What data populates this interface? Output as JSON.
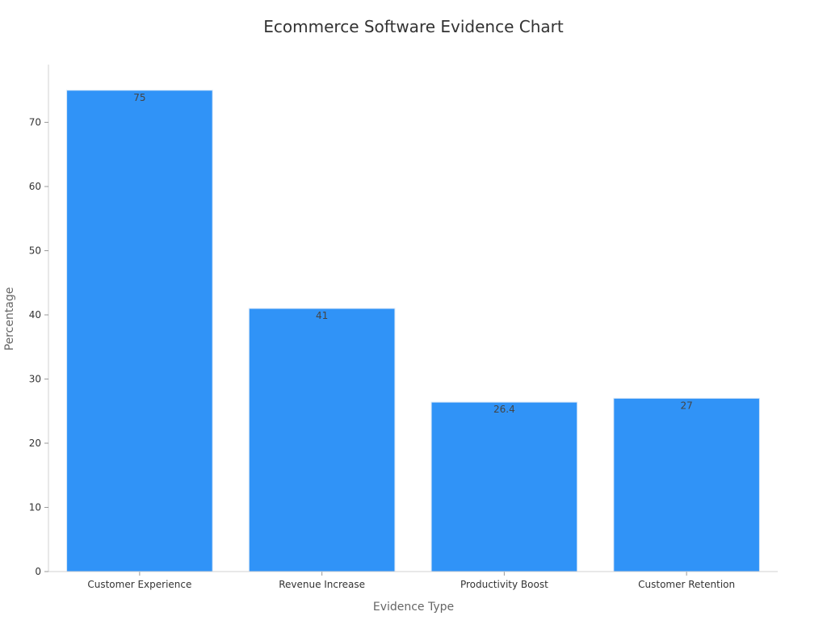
{
  "chart_data": {
    "type": "bar",
    "title": "Ecommerce Software Evidence Chart",
    "xlabel": "Evidence Type",
    "ylabel": "Percentage",
    "categories": [
      "Customer Experience",
      "Revenue Increase",
      "Productivity Boost",
      "Customer Retention"
    ],
    "values": [
      75,
      41,
      26.4,
      27
    ],
    "value_labels": [
      "75",
      "41",
      "26.4",
      "27"
    ],
    "ylim": [
      0,
      79
    ],
    "yticks": [
      0,
      10,
      20,
      30,
      40,
      50,
      60,
      70
    ],
    "grid": false,
    "legend": "none",
    "bar_color": "#3093f7",
    "bar_edge_color": "#d6e6f7"
  }
}
